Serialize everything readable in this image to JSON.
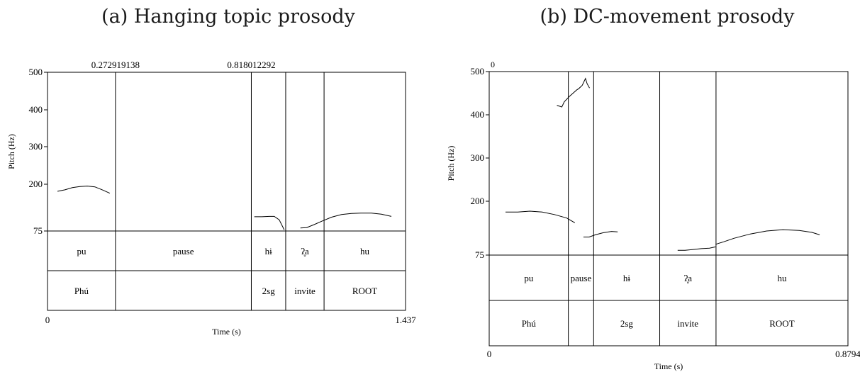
{
  "panels": [
    {
      "title": "(a) Hanging topic prosody",
      "top_ticks": [
        "0.272919138",
        "0.818012292"
      ],
      "ylabel": "Pitch (Hz)",
      "xlabel": "Time (s)",
      "x_start_label": "0",
      "x_end_label": "1.437",
      "y_ticks": [
        "500",
        "400",
        "300",
        "200",
        "75"
      ],
      "tier1": [
        "pu",
        "pause",
        "hɨ",
        "ʔ̥a",
        "hu"
      ],
      "tier2": [
        "Phú",
        "",
        "2sg",
        "invite",
        "ROOT"
      ]
    },
    {
      "title": "(b) DC-movement prosody",
      "top_ticks": [
        "0"
      ],
      "ylabel": "Pitch (Hz)",
      "xlabel": "Time (s)",
      "x_start_label": "0",
      "x_end_label": "0.8794",
      "y_ticks": [
        "500",
        "400",
        "300",
        "200",
        "75"
      ],
      "tier1": [
        "pu",
        "pause",
        "hɨ",
        "ʔ̥a",
        "hu"
      ],
      "tier2": [
        "Phú",
        "",
        "2sg",
        "invite",
        "ROOT"
      ]
    }
  ],
  "chart_data": [
    {
      "type": "line",
      "title": "(a) Hanging topic prosody",
      "xlabel": "Time (s)",
      "ylabel": "Pitch (Hz)",
      "xlim": [
        0,
        1.437
      ],
      "ylim": [
        75,
        500
      ],
      "y_ticks": [
        75,
        200,
        300,
        400,
        500
      ],
      "boundaries_s": [
        0.272919138,
        0.818012292,
        0.956,
        1.11
      ],
      "tier1": [
        "pu",
        "pause",
        "hɨ",
        "ʔ̥a",
        "hu"
      ],
      "tier2": [
        "Phú",
        "",
        "2sg",
        "invite",
        "ROOT"
      ],
      "series": [
        {
          "x": [
            0.04,
            0.07,
            0.1,
            0.13,
            0.16,
            0.19,
            0.22,
            0.25
          ],
          "y": [
            181,
            185,
            191,
            194,
            195,
            193,
            185,
            176
          ]
        },
        {
          "x": [
            0.83,
            0.86,
            0.89,
            0.91,
            0.93,
            0.95
          ],
          "y": [
            113,
            113,
            114,
            114,
            105,
            78
          ]
        },
        {
          "x": [
            1.015,
            1.04,
            1.07,
            1.1,
            1.14,
            1.18,
            1.22,
            1.26,
            1.3,
            1.34,
            1.38
          ],
          "y": [
            83,
            84,
            92,
            101,
            112,
            119,
            122,
            123,
            123,
            120,
            114
          ]
        }
      ]
    },
    {
      "type": "line",
      "title": "(b) DC-movement prosody",
      "xlabel": "Time (s)",
      "ylabel": "Pitch (Hz)",
      "xlim": [
        0,
        0.8794
      ],
      "ylim": [
        75,
        500
      ],
      "y_ticks": [
        75,
        200,
        300,
        400,
        500
      ],
      "boundaries_s": [
        0.194,
        0.256,
        0.418,
        0.556
      ],
      "tier1": [
        "pu",
        "pause",
        "hɨ",
        "ʔ̥a",
        "hu"
      ],
      "tier2": [
        "Phú",
        "",
        "2sg",
        "invite",
        "ROOT"
      ],
      "series": [
        {
          "x": [
            0.04,
            0.07,
            0.1,
            0.13,
            0.16,
            0.19,
            0.21
          ],
          "y": [
            175,
            175,
            177,
            175,
            169,
            161,
            150
          ]
        },
        {
          "x": [
            0.166,
            0.178,
            0.184,
            0.196,
            0.214,
            0.22,
            0.228,
            0.236,
            0.24,
            0.246
          ],
          "y": [
            422,
            418,
            430,
            442,
            457,
            461,
            468,
            484,
            472,
            462
          ]
        },
        {
          "x": [
            0.231,
            0.245,
            0.26,
            0.28,
            0.3,
            0.315
          ],
          "y": [
            117,
            117,
            122,
            127,
            130,
            129
          ]
        },
        {
          "x": [
            0.462,
            0.48,
            0.5,
            0.52,
            0.54,
            0.555
          ],
          "y": [
            86,
            86,
            88,
            90,
            91,
            94
          ]
        },
        {
          "x": [
            0.555,
            0.575,
            0.6,
            0.64,
            0.68,
            0.72,
            0.76,
            0.79,
            0.81
          ],
          "y": [
            100,
            106,
            114,
            124,
            131,
            134,
            132,
            128,
            122
          ]
        }
      ]
    }
  ]
}
